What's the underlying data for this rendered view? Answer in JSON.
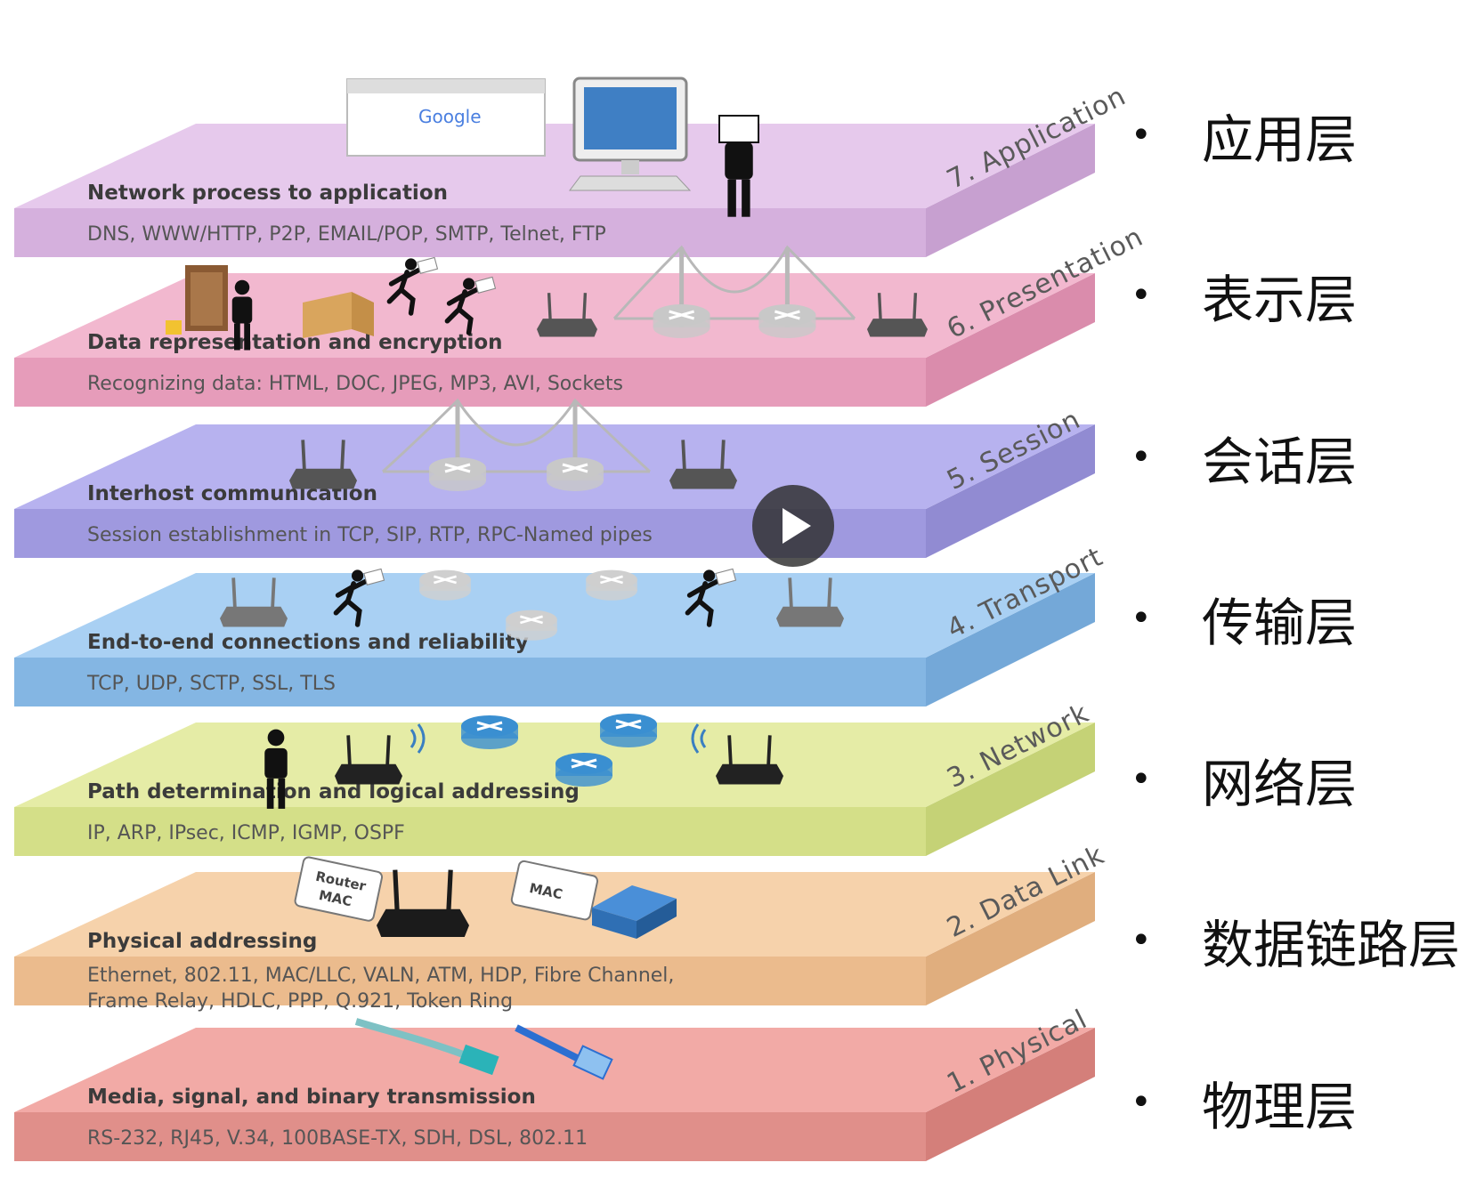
{
  "layers": [
    {
      "id": "application",
      "name": "7. Application",
      "desc": "Network process to application",
      "protocols": [
        "DNS, WWW/HTTP, P2P, EMAIL/POP, SMTP, Telnet, FTP"
      ],
      "cn": "应用层",
      "top": "#e6c9ec",
      "front": "#d5b0dd",
      "side": "#c7a0d0"
    },
    {
      "id": "presentation",
      "name": "6. Presentation",
      "desc": "Data representation and encryption",
      "protocols": [
        "Recognizing data: HTML, DOC, JPEG, MP3, AVI, Sockets"
      ],
      "cn": "表示层",
      "top": "#f2b8cf",
      "front": "#e69cba",
      "side": "#da8cac"
    },
    {
      "id": "session",
      "name": "5. Session",
      "desc": "Interhost communication",
      "protocols": [
        "Session establishment in TCP, SIP, RTP, RPC-Named pipes"
      ],
      "cn": "会话层",
      "top": "#b7b2ef",
      "front": "#9f99df",
      "side": "#918bd2"
    },
    {
      "id": "transport",
      "name": "4. Transport",
      "desc": "End-to-end connections and reliability",
      "protocols": [
        "TCP, UDP, SCTP, SSL, TLS"
      ],
      "cn": "传输层",
      "top": "#a9d0f3",
      "front": "#84b6e3",
      "side": "#74a8d8"
    },
    {
      "id": "network",
      "name": "3. Network",
      "desc": "Path determination and logical addressing",
      "protocols": [
        "IP, ARP, IPsec, ICMP, IGMP, OSPF"
      ],
      "cn": "网络层",
      "top": "#e5eca6",
      "front": "#d4df88",
      "side": "#c5d276"
    },
    {
      "id": "datalink",
      "name": "2. Data Link",
      "desc": "Physical addressing",
      "protocols": [
        "Ethernet, 802.11, MAC/LLC, VALN, ATM, HDP, Fibre Channel,",
        "Frame Relay, HDLC,  PPP, Q.921, Token Ring"
      ],
      "cn": "数据链路层",
      "top": "#f6d2ab",
      "front": "#ebbb8d",
      "side": "#e0ae7e"
    },
    {
      "id": "physical",
      "name": "1. Physical",
      "desc": "Media, signal, and binary transmission",
      "protocols": [
        "RS-232, RJ45, V.34, 100BASE-TX, SDH, DSL, 802.11"
      ],
      "cn": "物理层",
      "top": "#f2aaa6",
      "front": "#e08f8a",
      "side": "#d47f7a"
    }
  ],
  "bullet": "•",
  "labels": {
    "google": "Google",
    "router_mac_1": "Router",
    "router_mac_2": "MAC",
    "mac": "MAC"
  }
}
